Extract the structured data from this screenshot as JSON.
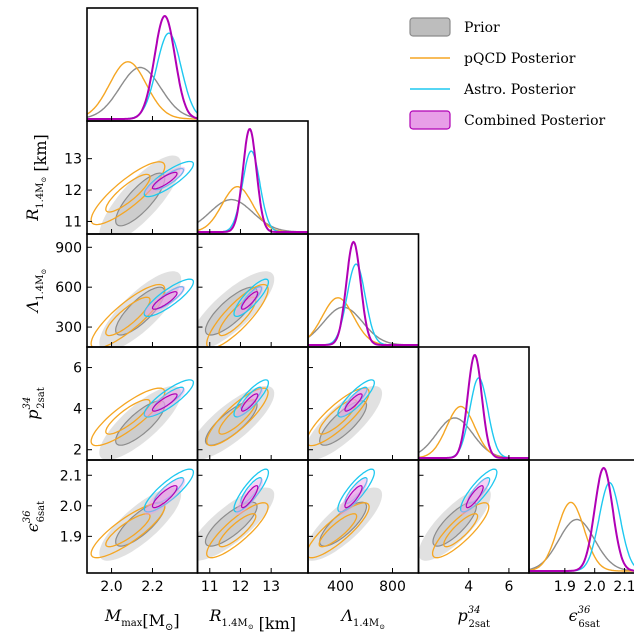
{
  "chart_data": {
    "type": "corner",
    "parameters": [
      {
        "key": "Mmax",
        "label": "M",
        "sub": "max",
        "tail": "[M",
        "tailsub": "⊙",
        "close": "]",
        "ticks": [
          2.0,
          2.2
        ],
        "tick_labels": [
          "2.0",
          "2.2"
        ],
        "range": [
          1.88,
          2.42
        ]
      },
      {
        "key": "R14",
        "label": "R",
        "sub": "1.4M",
        "subsub": "⊙",
        "tail": " [km]",
        "ticks": [
          11,
          12,
          13
        ],
        "tick_labels": [
          "11",
          "12",
          "13"
        ],
        "range": [
          10.6,
          14.2
        ]
      },
      {
        "key": "L14",
        "label": "Λ",
        "sub": "1.4M",
        "subsub": "⊙",
        "ticks": [
          400,
          800
        ],
        "tick_labels": [
          "400",
          "800"
        ],
        "range": [
          150,
          1000
        ]
      },
      {
        "key": "p2sat",
        "label": "p",
        "sub": "2sat",
        "sup": "34",
        "ticks": [
          4,
          6
        ],
        "tick_labels": [
          "4",
          "6"
        ],
        "range": [
          1.5,
          7.0
        ]
      },
      {
        "key": "e6sat",
        "label": "ϵ",
        "sub": "6sat",
        "sup": "36",
        "ticks": [
          1.9,
          2.0,
          2.1
        ],
        "tick_labels": [
          "1.9",
          "2.0",
          "2.1"
        ],
        "range": [
          1.78,
          2.15
        ]
      }
    ],
    "row_ticks": {
      "R14": {
        "ticks": [
          11,
          12,
          13
        ],
        "labels": [
          "11",
          "12",
          "13"
        ]
      },
      "L14": {
        "ticks": [
          300,
          600,
          900
        ],
        "labels": [
          "300",
          "600",
          "900"
        ]
      },
      "p2sat": {
        "ticks": [
          2,
          4,
          6
        ],
        "labels": [
          "2",
          "4",
          "6"
        ]
      },
      "e6sat": {
        "ticks": [
          1.9,
          2.0,
          2.1
        ],
        "labels": [
          "1.9",
          "2.0",
          "2.1"
        ]
      }
    },
    "series": [
      {
        "name": "Prior",
        "color": "#8c8c8c",
        "fill": "#bdbdbd",
        "style": "filled",
        "mean": {
          "Mmax": 2.14,
          "R14": 11.7,
          "L14": 420,
          "p2sat": 3.3,
          "e6sat": 1.94
        },
        "sd": {
          "Mmax": 0.1,
          "R14": 0.7,
          "L14": 150,
          "p2sat": 0.9,
          "e6sat": 0.06
        },
        "corr": 0.8
      },
      {
        "name": "pQCD Posterior",
        "color": "#f5a623",
        "fill": "none",
        "style": "line",
        "mean": {
          "Mmax": 2.08,
          "R14": 11.9,
          "L14": 380,
          "p2sat": 3.6,
          "e6sat": 1.92
        },
        "sd": {
          "Mmax": 0.09,
          "R14": 0.5,
          "L14": 120,
          "p2sat": 0.7,
          "e6sat": 0.045
        },
        "corr": 0.85
      },
      {
        "name": "Astro. Posterior",
        "color": "#1ec8f0",
        "fill": "none",
        "style": "line",
        "mean": {
          "Mmax": 2.28,
          "R14": 12.35,
          "L14": 520,
          "p2sat": 4.5,
          "e6sat": 2.05
        },
        "sd": {
          "Mmax": 0.06,
          "R14": 0.28,
          "L14": 70,
          "p2sat": 0.45,
          "e6sat": 0.035
        },
        "corr": 0.85
      },
      {
        "name": "Combined Posterior",
        "color": "#b000b5",
        "fill": "#e89ee8",
        "style": "filled",
        "mean": {
          "Mmax": 2.26,
          "R14": 12.3,
          "L14": 500,
          "p2sat": 4.3,
          "e6sat": 2.03
        },
        "sd": {
          "Mmax": 0.05,
          "R14": 0.22,
          "L14": 55,
          "p2sat": 0.35,
          "e6sat": 0.03
        },
        "corr": 0.85
      }
    ],
    "legend_position": "top-right"
  }
}
